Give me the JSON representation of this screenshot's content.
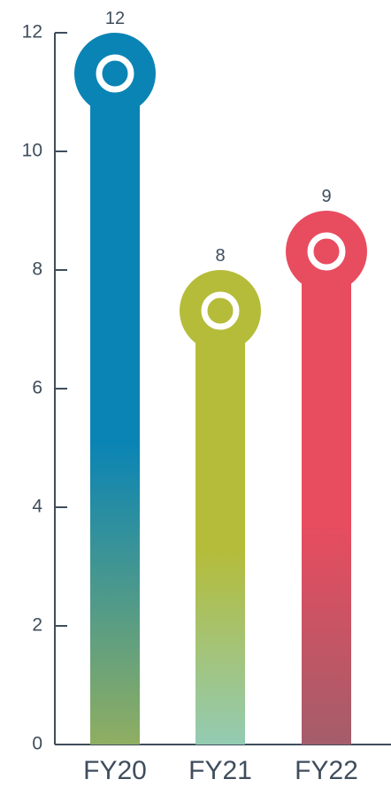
{
  "chart_data": {
    "type": "bar",
    "categories": [
      "FY20",
      "FY21",
      "FY22"
    ],
    "values": [
      12,
      8,
      9
    ],
    "data_labels": [
      "12",
      "8",
      "9"
    ],
    "ylim": [
      0,
      12
    ],
    "yticks": [
      0,
      2,
      4,
      6,
      8,
      10,
      12
    ],
    "ytick_labels": [
      "0",
      "2",
      "4",
      "6",
      "8",
      "10",
      "12"
    ],
    "grid": false,
    "bars": [
      {
        "top_color": "#0a84b5",
        "bottom_color": "#8fae62"
      },
      {
        "top_color": "#b5bc39",
        "bottom_color": "#93cbb3"
      },
      {
        "top_color": "#e84c5f",
        "bottom_color": "#a45d6a"
      }
    ],
    "axis_color": "#3f4d5c"
  }
}
